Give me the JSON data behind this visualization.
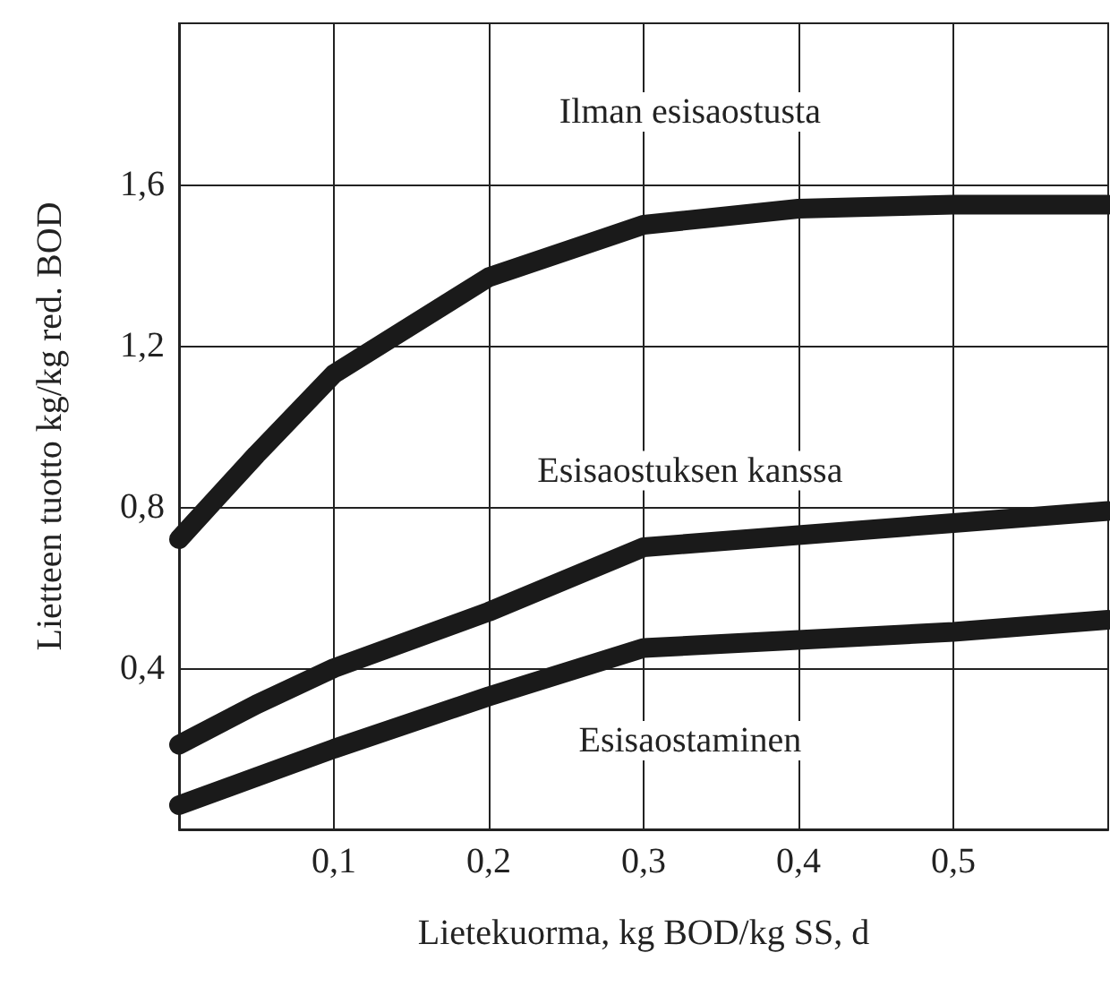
{
  "chart_data": {
    "type": "line",
    "xlabel": "Lietekuorma, kg BOD/kg SS, d",
    "ylabel": "Lietteen tuotto kg/kg red. BOD",
    "x": [
      0,
      0.05,
      0.1,
      0.2,
      0.3,
      0.4,
      0.5,
      0.6
    ],
    "xlim": [
      0,
      0.6
    ],
    "ylim": [
      0,
      2.0
    ],
    "xticks": [
      {
        "value": 0.1,
        "label": "0,1"
      },
      {
        "value": 0.2,
        "label": "0,2"
      },
      {
        "value": 0.3,
        "label": "0,3"
      },
      {
        "value": 0.4,
        "label": "0,4"
      },
      {
        "value": 0.5,
        "label": "0,5"
      }
    ],
    "yticks": [
      {
        "value": 0.4,
        "label": "0,4"
      },
      {
        "value": 0.8,
        "label": "0,8"
      },
      {
        "value": 1.2,
        "label": "1,2"
      },
      {
        "value": 1.6,
        "label": "1,6"
      }
    ],
    "grid": true,
    "legend": false,
    "line_style": "solid",
    "series": [
      {
        "name": "Ilman esisaostusta",
        "color": "#1a1a1a",
        "values": [
          0.72,
          0.93,
          1.13,
          1.37,
          1.5,
          1.54,
          1.55,
          1.55
        ]
      },
      {
        "name": "Esisaostuksen kanssa",
        "color": "#1a1a1a",
        "values": [
          0.21,
          0.31,
          0.4,
          0.54,
          0.7,
          0.73,
          0.76,
          0.79
        ]
      },
      {
        "name": "Esisaostaminen",
        "color": "#1a1a1a",
        "values": [
          0.06,
          0.13,
          0.2,
          0.33,
          0.45,
          0.47,
          0.49,
          0.52
        ]
      }
    ]
  }
}
